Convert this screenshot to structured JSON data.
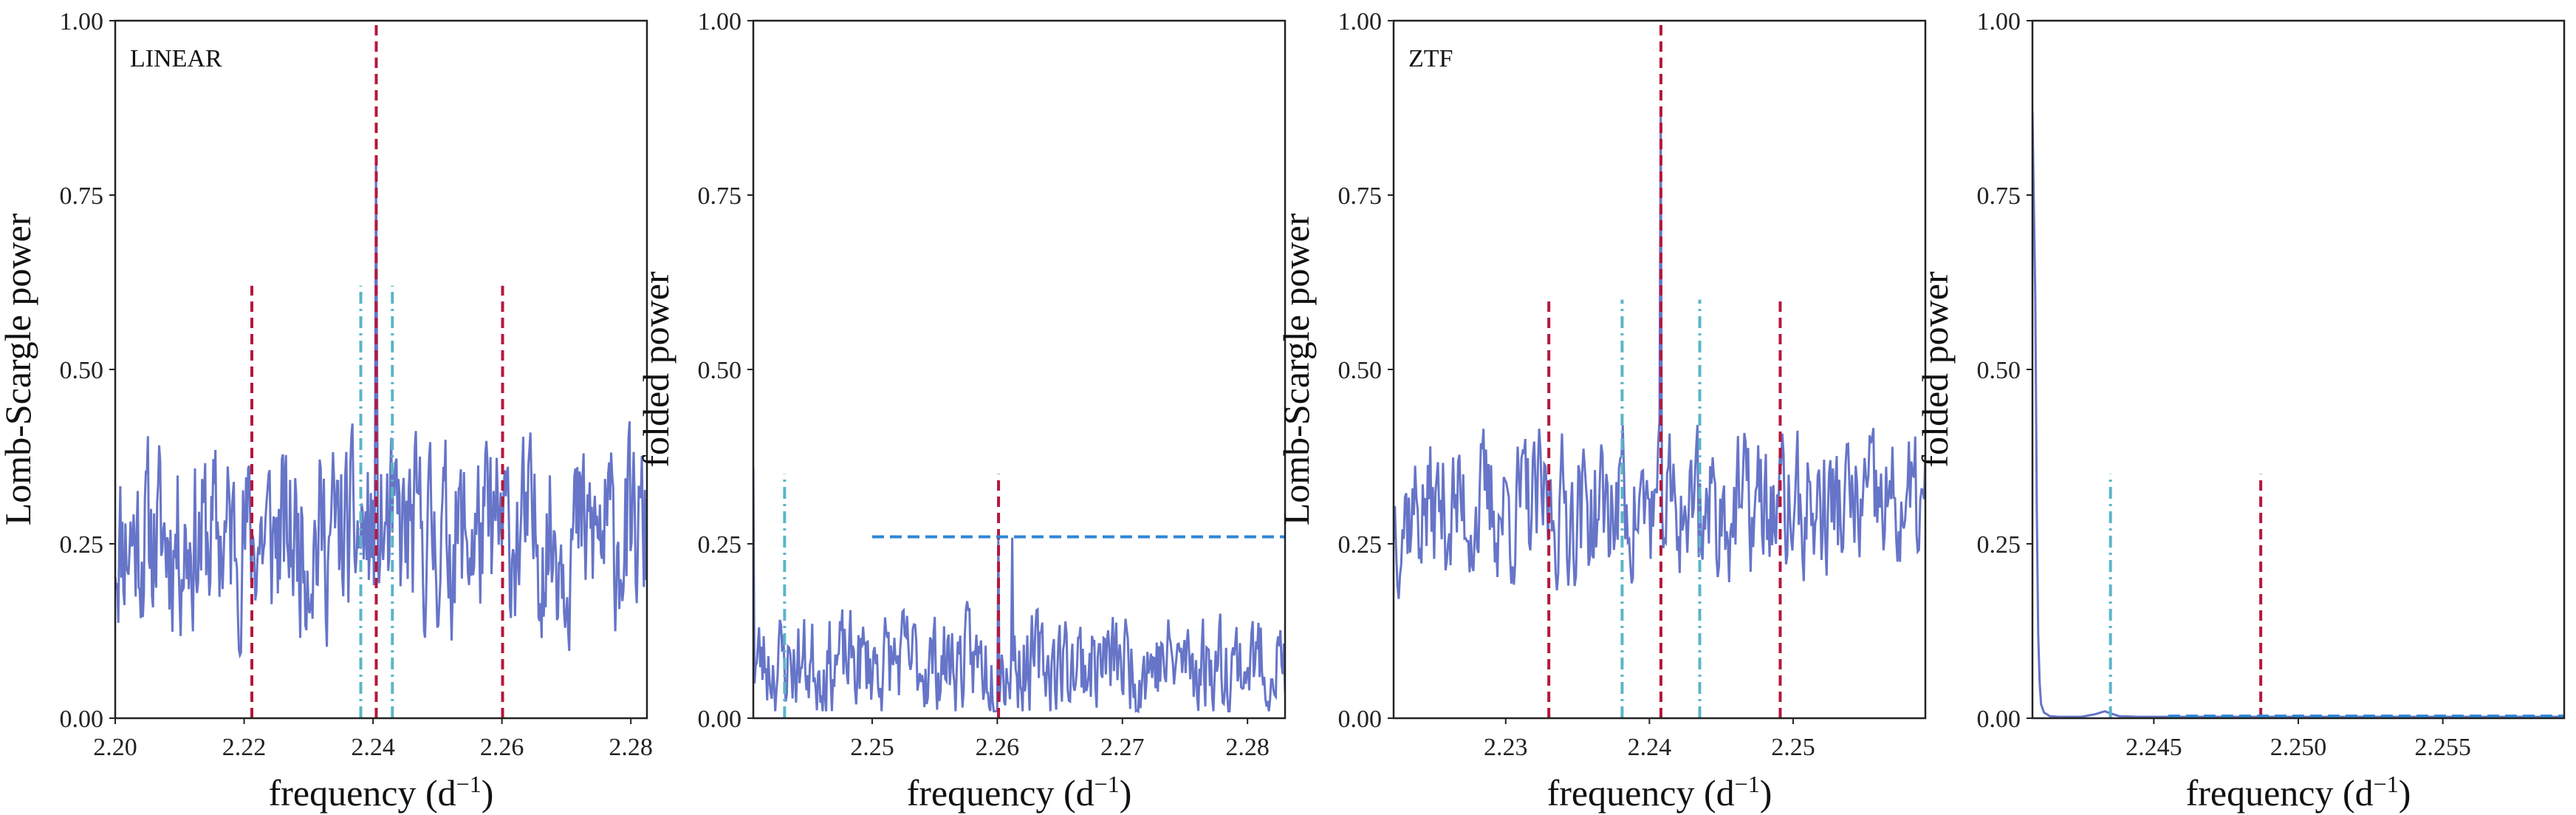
{
  "figure": {
    "background": "#ffffff"
  },
  "chart_data": [
    {
      "type": "line",
      "panel_label": "LINEAR",
      "ylabel": "Lomb-Scargle power",
      "xlabel": "frequency (d",
      "xlabel_superscript": "−1",
      "xlabel_close": ")",
      "xlim": [
        2.2,
        2.2825
      ],
      "ylim": [
        0,
        1
      ],
      "xticks": [
        2.2,
        2.22,
        2.24,
        2.26,
        2.28
      ],
      "xtick_labels": [
        "2.20",
        "2.22",
        "2.24",
        "2.26",
        "2.28"
      ],
      "yticks": [
        0,
        0.25,
        0.5,
        0.75,
        1.0
      ],
      "ytick_labels": [
        "0.00",
        "0.25",
        "0.50",
        "0.75",
        "1.00"
      ],
      "grid": false,
      "series": [
        {
          "kind": "noise",
          "color": "#6675c8",
          "base": 0.26,
          "amp": 0.2,
          "npts": 520,
          "seed": 11,
          "lo": 0.03,
          "hi": 0.6,
          "peaks": [
            [
              2.2405,
              1.0
            ]
          ]
        }
      ],
      "vlines": [
        {
          "x": 2.2405,
          "y0": 0,
          "y1": 1.0,
          "style": "red-dashed"
        },
        {
          "x": 2.2212,
          "y0": 0,
          "y1": 0.62,
          "style": "red-dashed"
        },
        {
          "x": 2.2601,
          "y0": 0,
          "y1": 0.62,
          "style": "red-dashed"
        },
        {
          "x": 2.2381,
          "y0": 0,
          "y1": 0.62,
          "style": "cyan-dashdot"
        },
        {
          "x": 2.243,
          "y0": 0,
          "y1": 0.62,
          "style": "cyan-dashdot"
        }
      ],
      "hlines": []
    },
    {
      "type": "line",
      "panel_label": "",
      "ylabel": "folded power",
      "xlabel": "frequency (d",
      "xlabel_superscript": "−1",
      "xlabel_close": ")",
      "xlim": [
        2.2405,
        2.283
      ],
      "ylim": [
        0,
        1
      ],
      "xticks": [
        2.25,
        2.26,
        2.27,
        2.28
      ],
      "xtick_labels": [
        "2.25",
        "2.26",
        "2.27",
        "2.28"
      ],
      "yticks": [
        0,
        0.25,
        0.5,
        0.75,
        1.0
      ],
      "ytick_labels": [
        "0.00",
        "0.25",
        "0.50",
        "0.75",
        "1.00"
      ],
      "grid": false,
      "series": [
        {
          "kind": "noise",
          "color": "#6675c8",
          "base": 0.08,
          "amp": 0.11,
          "npts": 460,
          "seed": 23,
          "lo": 0.01,
          "hi": 0.27,
          "peaks": [
            [
              2.2405,
              0.36
            ],
            [
              2.2601,
              0.3
            ],
            [
              2.2612,
              0.27
            ]
          ]
        }
      ],
      "vlines": [
        {
          "x": 2.243,
          "y0": 0,
          "y1": 0.35,
          "style": "cyan-dashdot"
        },
        {
          "x": 2.2601,
          "y0": 0,
          "y1": 0.35,
          "style": "red-dashed"
        }
      ],
      "hlines": [
        {
          "y": 0.26,
          "x0": 2.25,
          "x1": 2.283,
          "style": "blue-dashed"
        }
      ]
    },
    {
      "type": "line",
      "panel_label": "ZTF",
      "ylabel": "Lomb-Scargle power",
      "xlabel": "frequency (d",
      "xlabel_superscript": "−1",
      "xlabel_close": ")",
      "xlim": [
        2.2222,
        2.2592
      ],
      "ylim": [
        0,
        1
      ],
      "xticks": [
        2.23,
        2.24,
        2.25
      ],
      "xtick_labels": [
        "2.23",
        "2.24",
        "2.25"
      ],
      "yticks": [
        0,
        0.25,
        0.5,
        0.75,
        1.0
      ],
      "ytick_labels": [
        "0.00",
        "0.25",
        "0.50",
        "0.75",
        "1.00"
      ],
      "grid": false,
      "series": [
        {
          "kind": "noise",
          "color": "#6675c8",
          "base": 0.3,
          "amp": 0.16,
          "npts": 420,
          "seed": 37,
          "lo": 0.05,
          "hi": 0.54,
          "peaks": [
            [
              2.2408,
              0.94
            ],
            [
              2.2433,
              0.56
            ],
            [
              2.2381,
              0.48
            ]
          ]
        }
      ],
      "vlines": [
        {
          "x": 2.2408,
          "y0": 0,
          "y1": 1.0,
          "style": "red-dashed"
        },
        {
          "x": 2.233,
          "y0": 0,
          "y1": 0.6,
          "style": "red-dashed"
        },
        {
          "x": 2.2491,
          "y0": 0,
          "y1": 0.6,
          "style": "red-dashed"
        },
        {
          "x": 2.2381,
          "y0": 0,
          "y1": 0.6,
          "style": "cyan-dashdot"
        },
        {
          "x": 2.2435,
          "y0": 0,
          "y1": 0.6,
          "style": "cyan-dashdot"
        }
      ],
      "hlines": []
    },
    {
      "type": "line",
      "panel_label": "",
      "ylabel": "folded power",
      "xlabel": "frequency (d",
      "xlabel_superscript": "−1",
      "xlabel_close": ")",
      "xlim": [
        2.2408,
        2.2592
      ],
      "ylim": [
        0,
        1
      ],
      "xticks": [
        2.245,
        2.25,
        2.255
      ],
      "xtick_labels": [
        "2.245",
        "2.250",
        "2.255"
      ],
      "yticks": [
        0,
        0.25,
        0.5,
        0.75,
        1.0
      ],
      "ytick_labels": [
        "0.00",
        "0.25",
        "0.50",
        "0.75",
        "1.00"
      ],
      "grid": false,
      "series": [
        {
          "kind": "points",
          "color": "#6675c8",
          "x": [
            2.2408,
            2.2409,
            2.24095,
            2.241,
            2.24105,
            2.2411,
            2.2412,
            2.2414,
            2.2417,
            2.2425,
            2.243,
            2.2433,
            2.2435,
            2.2438,
            2.2445,
            2.2592
          ],
          "y": [
            0.87,
            0.6,
            0.3,
            0.12,
            0.05,
            0.02,
            0.008,
            0.003,
            0.002,
            0.002,
            0.006,
            0.01,
            0.007,
            0.003,
            0.002,
            0.002
          ]
        }
      ],
      "vlines": [
        {
          "x": 2.2435,
          "y0": 0,
          "y1": 0.35,
          "style": "cyan-dashdot"
        },
        {
          "x": 2.2487,
          "y0": 0,
          "y1": 0.35,
          "style": "red-dashed"
        }
      ],
      "hlines": [
        {
          "y": 0.003,
          "x0": 2.2455,
          "x1": 2.2592,
          "style": "blue-dashed"
        }
      ]
    }
  ],
  "styles": {
    "red-dashed": {
      "color": "#b5173c",
      "dash": "14 8"
    },
    "cyan-dashdot": {
      "color": "#5bb5c8",
      "dash": "16 7 3 7"
    },
    "blue-dashed": {
      "color": "#2e86d6",
      "dash": "16 8"
    }
  }
}
